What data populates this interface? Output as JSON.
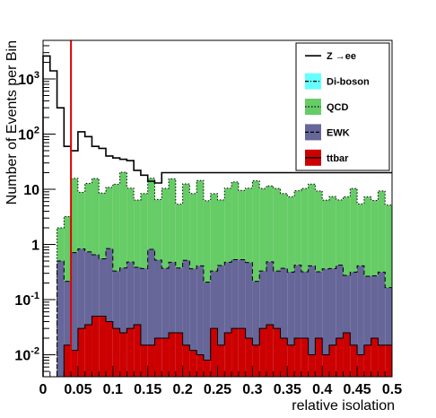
{
  "chart_data": {
    "type": "area",
    "xlabel": "relative isolation",
    "ylabel": "Number of Events per Bin",
    "xlim": [
      0,
      0.5
    ],
    "ylim": [
      0.004,
      5000
    ],
    "yscale": "log",
    "bin_width": 0.01,
    "x_tick_values": [
      0,
      0.05,
      0.1,
      0.15,
      0.2,
      0.25,
      0.3,
      0.35,
      0.4,
      0.45,
      0.5
    ],
    "x_tick_labels": [
      "0",
      "0.05",
      "0.1",
      "0.15",
      "0.2",
      "0.25",
      "0.3",
      "0.35",
      "0.4",
      "0.45",
      "0.5"
    ],
    "y_tick_labels": [
      {
        "value": 0.01,
        "base": "10",
        "exp": "-2"
      },
      {
        "value": 0.1,
        "base": "10",
        "exp": "-1"
      },
      {
        "value": 1,
        "base": "1",
        "exp": ""
      },
      {
        "value": 10,
        "base": "10",
        "exp": ""
      },
      {
        "value": 100,
        "base": "10",
        "exp": "2"
      },
      {
        "value": 1000,
        "base": "10",
        "exp": "3"
      }
    ],
    "cut_line": {
      "x": 0.04,
      "color": "#e00000"
    },
    "legend_position": "top-right",
    "series": [
      {
        "name": "Z →ee",
        "style": "line",
        "color": "#000000",
        "values": [
          2600,
          1400,
          300,
          60,
          50,
          110,
          90,
          60,
          55,
          40,
          37,
          35,
          33,
          22,
          18,
          14,
          13,
          20,
          20,
          20,
          20,
          20,
          20,
          20,
          20,
          20,
          20,
          20,
          20,
          20,
          20,
          20,
          20,
          20,
          20,
          20,
          20,
          20,
          20,
          20,
          20,
          20,
          20,
          20,
          20,
          20,
          20,
          20,
          20,
          20
        ]
      },
      {
        "name": "Di-boson",
        "style": "fill",
        "color": "#66ffff",
        "values": [
          0,
          0,
          0,
          0,
          0,
          0,
          0,
          0,
          0,
          0,
          0,
          0,
          0,
          0,
          0,
          0,
          0,
          0,
          0,
          0,
          0,
          0,
          0,
          0,
          0,
          0,
          0,
          0,
          0,
          0,
          0,
          0,
          0,
          0,
          0,
          0,
          0,
          0,
          0,
          0,
          0,
          0,
          0,
          0,
          0,
          0,
          0,
          0,
          0,
          0
        ]
      },
      {
        "name": "QCD",
        "style": "fill",
        "color": "#66cc66",
        "values": [
          0,
          0,
          1.5,
          3,
          15,
          8,
          12,
          15,
          8,
          10,
          12,
          20,
          10,
          6,
          8,
          15,
          6,
          10,
          15,
          5,
          12,
          8,
          14,
          6,
          8,
          6,
          10,
          13,
          9,
          10,
          14,
          10,
          11,
          10,
          8,
          7,
          9,
          10,
          12,
          9,
          6,
          7,
          6,
          7,
          10,
          5,
          7,
          6,
          9,
          5
        ]
      },
      {
        "name": "EWK",
        "style": "fill",
        "color": "#666699",
        "values": [
          0,
          0,
          0.5,
          0.2,
          0.7,
          0.8,
          0.7,
          0.6,
          0.5,
          0.8,
          0.3,
          0.35,
          0.45,
          0.35,
          0.35,
          0.8,
          0.5,
          0.35,
          0.45,
          0.35,
          0.5,
          0.35,
          0.4,
          0.2,
          0.3,
          0.4,
          0.45,
          0.5,
          0.5,
          0.45,
          0.2,
          0.3,
          0.45,
          0.3,
          0.35,
          0.3,
          0.4,
          0.3,
          0.4,
          0.3,
          0.35,
          0.35,
          0.4,
          0.25,
          0.3,
          0.4,
          0.25,
          0.25,
          0.3,
          0.15
        ]
      },
      {
        "name": "ttbar",
        "style": "fill",
        "color": "#cc0000",
        "values": [
          0,
          0,
          0,
          0.015,
          0.012,
          0.03,
          0.035,
          0.05,
          0.05,
          0.04,
          0.03,
          0.025,
          0.03,
          0.035,
          0.015,
          0.015,
          0.02,
          0.02,
          0.025,
          0.025,
          0.015,
          0.012,
          0.01,
          0.008,
          0.03,
          0.015,
          0.025,
          0.03,
          0.03,
          0.02,
          0.015,
          0.03,
          0.035,
          0.03,
          0.02,
          0.015,
          0.02,
          0.02,
          0.01,
          0.02,
          0.01,
          0.015,
          0.02,
          0.025,
          0.015,
          0.01,
          0.015,
          0.02,
          0.015,
          0.015
        ]
      }
    ]
  }
}
